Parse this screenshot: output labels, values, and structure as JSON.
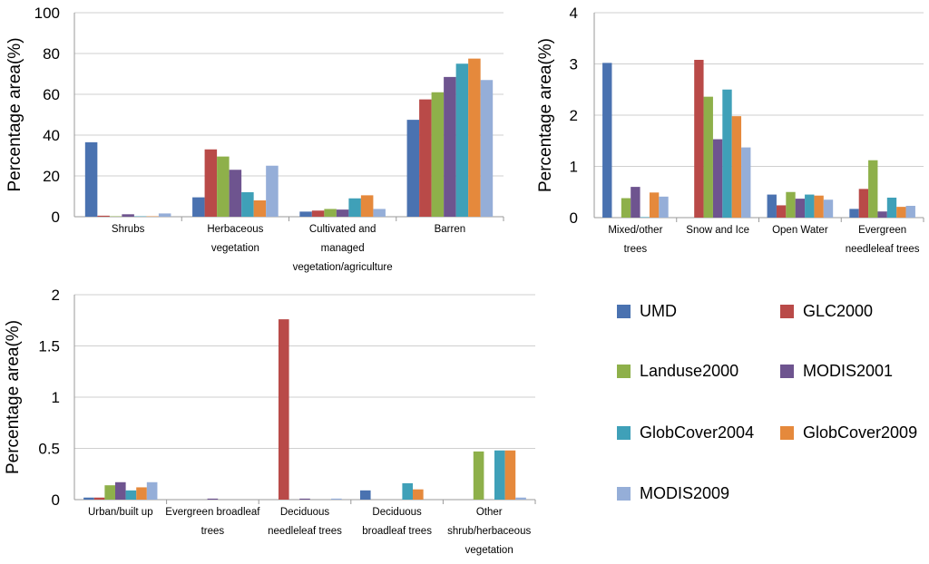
{
  "colors": [
    "#4a72b0",
    "#b94a48",
    "#8eb04a",
    "#6e548f",
    "#3fa0b8",
    "#e5893c",
    "#95aed8"
  ],
  "chart_data": [
    {
      "type": "bar",
      "ylabel": "Percentage area(%)",
      "ylim": [
        0,
        100
      ],
      "yticks": [
        "0",
        "20",
        "40",
        "60",
        "80",
        "100"
      ],
      "grid": true,
      "categories": [
        [
          "Shrubs"
        ],
        [
          "Herbaceous",
          "vegetation"
        ],
        [
          "Cultivated and",
          "managed",
          "vegetation/agriculture"
        ],
        [
          "Barren"
        ]
      ],
      "series": [
        {
          "name": "UMD",
          "values": [
            36.5,
            9.5,
            2.5,
            47.5
          ]
        },
        {
          "name": "GLC2000",
          "values": [
            0.5,
            33,
            3,
            57.5
          ]
        },
        {
          "name": "Landuse2000",
          "values": [
            0.2,
            29.5,
            3.8,
            61
          ]
        },
        {
          "name": "MODIS2001",
          "values": [
            1.2,
            23,
            3.5,
            68.5
          ]
        },
        {
          "name": "GlobCover2004",
          "values": [
            0.2,
            12,
            9,
            75
          ]
        },
        {
          "name": "GlobCover2009",
          "values": [
            0.2,
            8,
            10.5,
            77.5
          ]
        },
        {
          "name": "MODIS2009",
          "values": [
            1.6,
            25,
            3.8,
            67
          ]
        }
      ]
    },
    {
      "type": "bar",
      "ylabel": "Percentage area(%)",
      "ylim": [
        0,
        4
      ],
      "yticks": [
        "0",
        "1",
        "2",
        "3",
        "4"
      ],
      "grid": true,
      "categories": [
        [
          "Mixed/other",
          "trees"
        ],
        [
          "Snow and Ice"
        ],
        [
          "Open Water"
        ],
        [
          "Evergreen",
          "needleleaf trees"
        ]
      ],
      "series": [
        {
          "name": "UMD",
          "values": [
            3.02,
            0,
            0.45,
            0.17
          ]
        },
        {
          "name": "GLC2000",
          "values": [
            0,
            3.08,
            0.24,
            0.56
          ]
        },
        {
          "name": "Landuse2000",
          "values": [
            0.38,
            2.36,
            0.5,
            1.12
          ]
        },
        {
          "name": "MODIS2001",
          "values": [
            0.6,
            1.53,
            0.37,
            0.12
          ]
        },
        {
          "name": "GlobCover2004",
          "values": [
            0.01,
            2.5,
            0.45,
            0.39
          ]
        },
        {
          "name": "GlobCover2009",
          "values": [
            0.49,
            1.98,
            0.43,
            0.21
          ]
        },
        {
          "name": "MODIS2009",
          "values": [
            0.41,
            1.37,
            0.35,
            0.23
          ]
        }
      ]
    },
    {
      "type": "bar",
      "ylabel": "Percentage area(%)",
      "ylim": [
        0,
        2
      ],
      "yticks": [
        "0",
        "0.5",
        "1",
        "1.5",
        "2"
      ],
      "grid": true,
      "categories": [
        [
          "Urban/built up"
        ],
        [
          "Evergreen broadleaf",
          "trees"
        ],
        [
          "Deciduous",
          "needleleaf trees"
        ],
        [
          "Deciduous",
          "broadleaf trees"
        ],
        [
          "Other",
          "shrub/herbaceous",
          "vegetation"
        ]
      ],
      "series": [
        {
          "name": "UMD",
          "values": [
            0.02,
            0,
            0,
            0.09,
            0
          ]
        },
        {
          "name": "GLC2000",
          "values": [
            0.02,
            0,
            1.76,
            0,
            0
          ]
        },
        {
          "name": "Landuse2000",
          "values": [
            0.14,
            0,
            0,
            0,
            0.47
          ]
        },
        {
          "name": "MODIS2001",
          "values": [
            0.17,
            0.01,
            0.01,
            0,
            0
          ]
        },
        {
          "name": "GlobCover2004",
          "values": [
            0.09,
            0,
            0,
            0.16,
            0.48
          ]
        },
        {
          "name": "GlobCover2009",
          "values": [
            0.12,
            0,
            0,
            0.1,
            0.48
          ]
        },
        {
          "name": "MODIS2009",
          "values": [
            0.17,
            0,
            0.01,
            0,
            0.02
          ]
        }
      ]
    }
  ],
  "legend": [
    "UMD",
    "GLC2000",
    "Landuse2000",
    "MODIS2001",
    "GlobCover2004",
    "GlobCover2009",
    "MODIS2009"
  ]
}
